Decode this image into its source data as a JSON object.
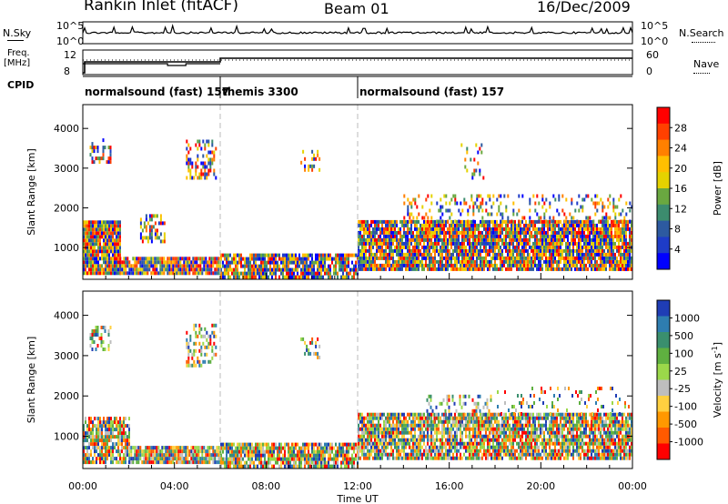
{
  "header": {
    "title": "Rankin Inlet (fitACF)",
    "beam": "Beam 01",
    "date": "16/Dec/2009"
  },
  "top_panels": {
    "nsky_label": "N.Sky",
    "nsky_ticks": [
      "10^5",
      "10^0"
    ],
    "nsearch_label": "N.Search",
    "nsearch_ticks": [
      "10^5",
      "10^0"
    ],
    "freq_label_line1": "Freq.",
    "freq_label_line2": "[MHz]",
    "freq_ticks": [
      "12",
      "8"
    ],
    "nave_label": "Nave",
    "nave_ticks": [
      "60",
      "0"
    ],
    "cpid_label": "CPID",
    "cpid_segments": [
      {
        "label": "normalsound (fast) 157",
        "start_hour": 0
      },
      {
        "label": "themis 3300",
        "start_hour": 6
      },
      {
        "label": "normalsound (fast) 157",
        "start_hour": 12
      }
    ]
  },
  "chart_data": [
    {
      "type": "heatmap",
      "title": "",
      "ylabel": "Slant Range [km]",
      "xlim_hours": [
        0,
        24
      ],
      "ylim": [
        200,
        4600
      ],
      "yticks": [
        1000,
        2000,
        3000,
        4000
      ],
      "colorbar_label": "Power [dB]",
      "colorbar_ticks": [
        "28",
        "24",
        "20",
        "16",
        "12",
        "8",
        "4"
      ],
      "colorbar_colors": [
        "#ff0000",
        "#ff4000",
        "#ff8000",
        "#ffbf00",
        "#e5d200",
        "#6aa840",
        "#3c8c6e",
        "#2d5aa0",
        "#1e3cc8",
        "#0000ff"
      ],
      "scatter_regions": [
        {
          "t0": 0.0,
          "t1": 1.6,
          "r0": 400,
          "r1": 1700,
          "fill": 0.95
        },
        {
          "t0": 1.6,
          "t1": 6.0,
          "r0": 400,
          "r1": 800,
          "fill": 0.9
        },
        {
          "t0": 6.0,
          "t1": 12.0,
          "r0": 300,
          "r1": 900,
          "fill": 0.85
        },
        {
          "t0": 12.0,
          "t1": 24.0,
          "r0": 500,
          "r1": 1700,
          "fill": 0.9
        },
        {
          "t0": 14.0,
          "t1": 24.0,
          "r0": 1700,
          "r1": 2400,
          "fill": 0.25
        },
        {
          "t0": 2.5,
          "t1": 3.6,
          "r0": 1200,
          "r1": 1900,
          "fill": 0.5
        },
        {
          "t0": 0.3,
          "t1": 1.2,
          "r0": 3200,
          "r1": 3800,
          "fill": 0.4
        },
        {
          "t0": 4.5,
          "t1": 5.8,
          "r0": 2800,
          "r1": 3800,
          "fill": 0.4
        },
        {
          "t0": 9.5,
          "t1": 10.3,
          "r0": 3000,
          "r1": 3500,
          "fill": 0.3
        },
        {
          "t0": 16.5,
          "t1": 17.5,
          "r0": 2800,
          "r1": 3800,
          "fill": 0.15
        }
      ]
    },
    {
      "type": "heatmap",
      "title": "",
      "ylabel": "Slant Range [km]",
      "xlabel": "Time UT",
      "xlim_hours": [
        0,
        24
      ],
      "xticks": [
        "00:00",
        "04:00",
        "08:00",
        "12:00",
        "16:00",
        "20:00",
        "00:00"
      ],
      "ylim": [
        200,
        4600
      ],
      "yticks": [
        1000,
        2000,
        3000,
        4000
      ],
      "colorbar_label": "Velocity [m s^-1]",
      "colorbar_ticks": [
        "1000",
        "500",
        "100",
        "25",
        "-25",
        "-100",
        "-500",
        "-1000"
      ],
      "colorbar_colors": [
        "#1f3db5",
        "#2e7db0",
        "#3a8f6e",
        "#5fb040",
        "#9bd84a",
        "#bebebe",
        "#ffd040",
        "#ff9800",
        "#ff5a00",
        "#ff0000"
      ],
      "scatter_regions": [
        {
          "t0": 0.0,
          "t1": 2.0,
          "r0": 400,
          "r1": 1500,
          "fill": 0.8
        },
        {
          "t0": 2.0,
          "t1": 6.0,
          "r0": 400,
          "r1": 800,
          "fill": 0.9
        },
        {
          "t0": 6.0,
          "t1": 12.0,
          "r0": 300,
          "r1": 900,
          "fill": 0.85
        },
        {
          "t0": 12.0,
          "t1": 24.0,
          "r0": 500,
          "r1": 1600,
          "fill": 0.85
        },
        {
          "t0": 15.0,
          "t1": 18.0,
          "r0": 1400,
          "r1": 2100,
          "fill": 0.35
        },
        {
          "t0": 18.0,
          "t1": 24.0,
          "r0": 1600,
          "r1": 2300,
          "fill": 0.15
        },
        {
          "t0": 0.3,
          "t1": 1.2,
          "r0": 3200,
          "r1": 3800,
          "fill": 0.35
        },
        {
          "t0": 4.5,
          "t1": 5.8,
          "r0": 2800,
          "r1": 3800,
          "fill": 0.35
        },
        {
          "t0": 9.5,
          "t1": 10.3,
          "r0": 3000,
          "r1": 3500,
          "fill": 0.25
        }
      ]
    }
  ]
}
